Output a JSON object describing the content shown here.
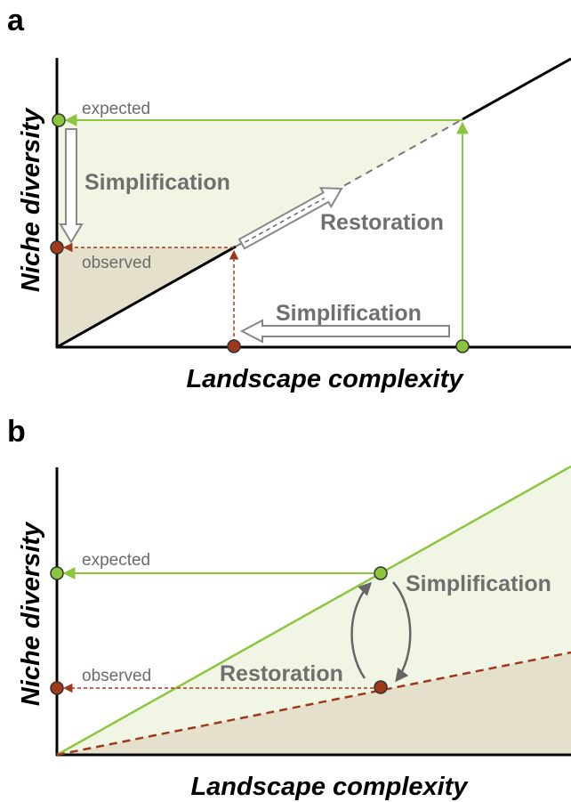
{
  "panels": [
    {
      "label": "a",
      "y_axis_label": "Niche diversity",
      "x_axis_label": "Landscape complexity",
      "expected": "expected",
      "observed": "observed",
      "annotations": [
        "Simplification",
        "Restoration",
        "Simplification"
      ]
    },
    {
      "label": "b",
      "y_axis_label": "Niche diversity",
      "x_axis_label": "Landscape complexity",
      "expected": "expected",
      "observed": "observed",
      "annotations": [
        "Simplification",
        "Restoration"
      ]
    }
  ]
}
